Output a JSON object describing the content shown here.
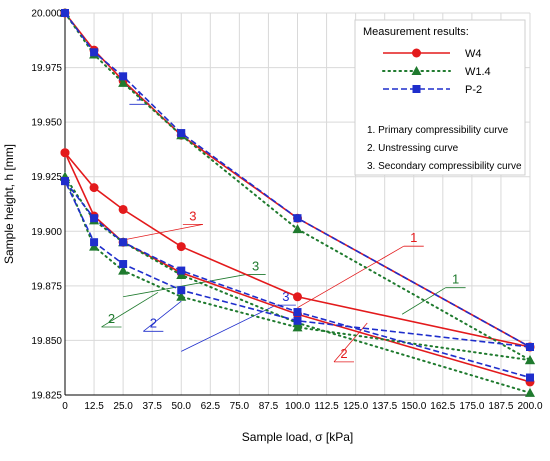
{
  "chart_data": {
    "type": "line",
    "xlabel": "Sample load, σ [kPa]",
    "ylabel": "Sample height, h [mm]",
    "xlim": [
      0,
      200
    ],
    "ylim": [
      19.825,
      20.0
    ],
    "x_ticks": [
      "0",
      "12.5",
      "25.0",
      "37.5",
      "50.0",
      "62.5",
      "75.0",
      "87.5",
      "100.0",
      "112.5",
      "125.0",
      "137.5",
      "150.0",
      "162.5",
      "175.0",
      "187.5",
      "200.0"
    ],
    "y_ticks": [
      "19.825",
      "19.850",
      "19.875",
      "19.900",
      "19.925",
      "19.950",
      "19.975",
      "20.000"
    ],
    "grid": true,
    "legend": {
      "title": "Measurement results:",
      "placement": "top-right"
    },
    "notes": [
      "1. Primary compressibility curve",
      "2. Unstressing curve",
      "3. Secondary compressibility curve"
    ],
    "series": [
      {
        "name": "W4",
        "color": "#e31a1c",
        "style": "solid",
        "marker": "circle",
        "segments": [
          {
            "x": [
              0,
              12.5,
              25,
              50,
              100,
              200
            ],
            "y": [
              20.0,
              19.983,
              19.969,
              19.944,
              19.906,
              19.847
            ]
          },
          {
            "x": [
              200,
              100,
              50,
              25,
              12.5,
              0
            ],
            "y": [
              19.847,
              19.87,
              19.893,
              19.91,
              19.92,
              19.936
            ]
          },
          {
            "x": [
              0,
              12.5,
              25,
              50,
              100,
              200
            ],
            "y": [
              19.936,
              19.907,
              19.895,
              19.881,
              19.862,
              19.831
            ]
          }
        ]
      },
      {
        "name": "W1.4",
        "color": "#1f7a2e",
        "style": "dotted",
        "marker": "triangle",
        "segments": [
          {
            "x": [
              0,
              12.5,
              25,
              50,
              100,
              200
            ],
            "y": [
              20.0,
              19.981,
              19.968,
              19.944,
              19.901,
              19.841
            ]
          },
          {
            "x": [
              200,
              100,
              50,
              25,
              12.5,
              0
            ],
            "y": [
              19.841,
              19.856,
              19.87,
              19.882,
              19.893,
              19.925
            ]
          },
          {
            "x": [
              0,
              12.5,
              25,
              50,
              100,
              200
            ],
            "y": [
              19.925,
              19.905,
              19.895,
              19.88,
              19.858,
              19.826
            ]
          }
        ]
      },
      {
        "name": "P-2",
        "color": "#1f2ecc",
        "style": "dashed",
        "marker": "square",
        "segments": [
          {
            "x": [
              0,
              12.5,
              25,
              50,
              100,
              200
            ],
            "y": [
              20.0,
              19.982,
              19.971,
              19.945,
              19.906,
              19.847
            ]
          },
          {
            "x": [
              200,
              100,
              50,
              25,
              12.5,
              0
            ],
            "y": [
              19.847,
              19.859,
              19.873,
              19.885,
              19.895,
              19.923
            ]
          },
          {
            "x": [
              0,
              12.5,
              25,
              50,
              100,
              200
            ],
            "y": [
              19.923,
              19.906,
              19.895,
              19.882,
              19.863,
              19.833
            ]
          }
        ]
      }
    ],
    "annotations": [
      {
        "label": "1",
        "color": "#1f2ecc",
        "x": 32,
        "y": 19.96
      },
      {
        "label": "1",
        "color": "#e31a1c",
        "x": 150,
        "y": 19.895
      },
      {
        "label": "1",
        "color": "#1f7a2e",
        "x": 168,
        "y": 19.876
      },
      {
        "label": "3",
        "color": "#e31a1c",
        "x": 55,
        "y": 19.905
      },
      {
        "label": "3",
        "color": "#1f7a2e",
        "x": 82,
        "y": 19.882
      },
      {
        "label": "3",
        "color": "#1f2ecc",
        "x": 95,
        "y": 19.868
      },
      {
        "label": "2",
        "color": "#1f7a2e",
        "x": 20,
        "y": 19.858
      },
      {
        "label": "2",
        "color": "#1f2ecc",
        "x": 38,
        "y": 19.856
      },
      {
        "label": "2",
        "color": "#e31a1c",
        "x": 120,
        "y": 19.842
      }
    ]
  }
}
